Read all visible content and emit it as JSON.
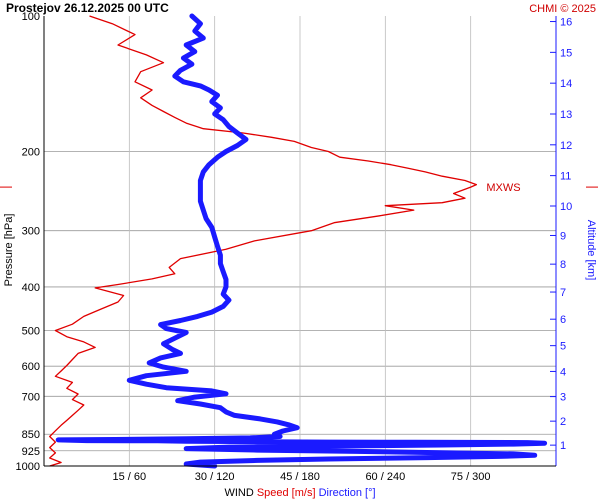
{
  "chart_data": {
    "type": "line",
    "title": "Prostejov   26.12.2025 00 UTC",
    "credit": "CHMI © 2025",
    "ylabel": "Pressure [hPa]",
    "ylabel_right": "Altitude [km]",
    "xlabel_parts": [
      {
        "text": "WIND",
        "color": "#000000"
      },
      {
        "text": "Speed [m/s]",
        "color": "#e00000"
      },
      {
        "text": "Direction [°]",
        "color": "#1a1aff"
      }
    ],
    "pressure_ticks": [
      "100",
      "200",
      "300",
      "400",
      "500",
      "600",
      "700",
      "850",
      "925",
      "1000"
    ],
    "pressure_values": [
      100,
      200,
      300,
      400,
      500,
      600,
      700,
      850,
      925,
      1000
    ],
    "x_ticks": [
      "15 / 60",
      "30 / 120",
      "45 / 180",
      "60 / 240",
      "75 / 300"
    ],
    "speed_range": [
      0,
      90
    ],
    "direction_range": [
      0,
      360
    ],
    "altitude_ticks": [
      "1",
      "2",
      "3",
      "4",
      "5",
      "6",
      "7",
      "8",
      "9",
      "10",
      "11",
      "12",
      "13",
      "14",
      "15",
      "16"
    ],
    "max_wind_label": "MXWS",
    "max_wind_pressure": 240,
    "series": [
      {
        "name": "Speed [m/s]",
        "color": "#e00000",
        "points": [
          [
            8,
            100
          ],
          [
            12,
            104
          ],
          [
            16,
            110
          ],
          [
            13,
            116
          ],
          [
            18,
            122
          ],
          [
            21,
            127
          ],
          [
            17,
            133
          ],
          [
            16,
            140
          ],
          [
            19,
            146
          ],
          [
            17,
            152
          ],
          [
            19,
            158
          ],
          [
            21,
            163
          ],
          [
            23,
            168
          ],
          [
            25,
            173
          ],
          [
            28,
            178
          ],
          [
            35,
            182
          ],
          [
            40,
            186
          ],
          [
            44,
            190
          ],
          [
            47,
            196
          ],
          [
            50,
            200
          ],
          [
            52,
            206
          ],
          [
            57,
            210
          ],
          [
            61,
            214
          ],
          [
            64,
            218
          ],
          [
            67,
            222
          ],
          [
            70,
            227
          ],
          [
            74,
            232
          ],
          [
            76,
            237
          ],
          [
            75,
            240
          ],
          [
            72,
            248
          ],
          [
            74,
            254
          ],
          [
            70,
            260
          ],
          [
            60,
            264
          ],
          [
            65,
            270
          ],
          [
            59,
            278
          ],
          [
            51,
            288
          ],
          [
            47,
            300
          ],
          [
            37,
            316
          ],
          [
            32,
            330
          ],
          [
            24,
            346
          ],
          [
            22,
            362
          ],
          [
            23,
            374
          ],
          [
            19,
            384
          ],
          [
            13,
            395
          ],
          [
            9,
            402
          ],
          [
            14,
            418
          ],
          [
            13,
            432
          ],
          [
            10,
            448
          ],
          [
            7,
            465
          ],
          [
            5,
            484
          ],
          [
            2,
            500
          ],
          [
            4,
            516
          ],
          [
            7,
            530
          ],
          [
            9,
            545
          ],
          [
            6,
            562
          ],
          [
            5,
            580
          ],
          [
            4,
            598
          ],
          [
            3,
            615
          ],
          [
            2,
            632
          ],
          [
            5,
            652
          ],
          [
            4,
            672
          ],
          [
            6,
            692
          ],
          [
            5,
            712
          ],
          [
            7,
            732
          ],
          [
            6,
            752
          ],
          [
            5,
            772
          ],
          [
            4,
            792
          ],
          [
            3,
            812
          ],
          [
            2,
            835
          ],
          [
            1,
            860
          ],
          [
            2,
            885
          ],
          [
            1,
            910
          ],
          [
            2,
            935
          ],
          [
            1,
            960
          ],
          [
            3,
            982
          ],
          [
            1,
            1000
          ]
        ]
      },
      {
        "name": "Direction [°]",
        "color": "#1a1aff",
        "points": [
          [
            104,
            100
          ],
          [
            110,
            104
          ],
          [
            106,
            108
          ],
          [
            112,
            112
          ],
          [
            100,
            116
          ],
          [
            106,
            120
          ],
          [
            98,
            124
          ],
          [
            104,
            128
          ],
          [
            96,
            132
          ],
          [
            92,
            136
          ],
          [
            98,
            140
          ],
          [
            110,
            143
          ],
          [
            116,
            146
          ],
          [
            122,
            150
          ],
          [
            118,
            155
          ],
          [
            124,
            160
          ],
          [
            120,
            165
          ],
          [
            126,
            170
          ],
          [
            130,
            176
          ],
          [
            136,
            182
          ],
          [
            142,
            188
          ],
          [
            136,
            194
          ],
          [
            128,
            200
          ],
          [
            122,
            206
          ],
          [
            116,
            214
          ],
          [
            112,
            222
          ],
          [
            110,
            232
          ],
          [
            110,
            244
          ],
          [
            110,
            258
          ],
          [
            112,
            270
          ],
          [
            114,
            282
          ],
          [
            118,
            295
          ],
          [
            120,
            310
          ],
          [
            122,
            325
          ],
          [
            124,
            340
          ],
          [
            124,
            355
          ],
          [
            126,
            370
          ],
          [
            128,
            385
          ],
          [
            128,
            400
          ],
          [
            126,
            415
          ],
          [
            130,
            428
          ],
          [
            126,
            442
          ],
          [
            118,
            455
          ],
          [
            108,
            465
          ],
          [
            96,
            475
          ],
          [
            82,
            485
          ],
          [
            86,
            495
          ],
          [
            100,
            505
          ],
          [
            92,
            520
          ],
          [
            84,
            535
          ],
          [
            90,
            550
          ],
          [
            96,
            562
          ],
          [
            82,
            575
          ],
          [
            74,
            590
          ],
          [
            84,
            603
          ],
          [
            100,
            616
          ],
          [
            72,
            630
          ],
          [
            60,
            645
          ],
          [
            72,
            658
          ],
          [
            86,
            670
          ],
          [
            118,
            681
          ],
          [
            128,
            691
          ],
          [
            106,
            703
          ],
          [
            94,
            716
          ],
          [
            110,
            728
          ],
          [
            124,
            742
          ],
          [
            128,
            758
          ],
          [
            134,
            772
          ],
          [
            152,
            786
          ],
          [
            164,
            798
          ],
          [
            172,
            810
          ],
          [
            178,
            822
          ],
          [
            168,
            836
          ],
          [
            162,
            850
          ],
          [
            166,
            860
          ],
          [
            145,
            866
          ],
          [
            100,
            870
          ],
          [
            50,
            873
          ],
          [
            10,
            875
          ],
          [
            30,
            878
          ],
          [
            80,
            879
          ],
          [
            100,
            881
          ],
          [
            150,
            883
          ],
          [
            200,
            885
          ],
          [
            260,
            886
          ],
          [
            340,
            887
          ],
          [
            352,
            890
          ],
          [
            330,
            894
          ],
          [
            280,
            898
          ],
          [
            200,
            903
          ],
          [
            130,
            908
          ],
          [
            100,
            915
          ],
          [
            150,
            922
          ],
          [
            220,
            928
          ],
          [
            280,
            934
          ],
          [
            330,
            940
          ],
          [
            345,
            946
          ],
          [
            320,
            952
          ],
          [
            270,
            958
          ],
          [
            200,
            965
          ],
          [
            150,
            972
          ],
          [
            110,
            980
          ],
          [
            100,
            990
          ],
          [
            120,
            1000
          ]
        ]
      }
    ]
  }
}
